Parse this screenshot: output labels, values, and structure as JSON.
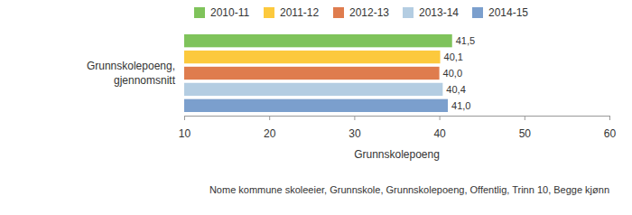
{
  "chart_data": {
    "type": "bar",
    "orientation": "horizontal",
    "categories": [
      "Grunnskolepoeng, gjennomsnitt"
    ],
    "series": [
      {
        "name": "2010-11",
        "color": "#7fc35b",
        "values": [
          41.5
        ],
        "value_labels": [
          "41,5"
        ]
      },
      {
        "name": "2011-12",
        "color": "#fcc93d",
        "values": [
          40.1
        ],
        "value_labels": [
          "40,1"
        ]
      },
      {
        "name": "2012-13",
        "color": "#df7c4e",
        "values": [
          40.0
        ],
        "value_labels": [
          "40,0"
        ]
      },
      {
        "name": "2013-14",
        "color": "#b4cde2",
        "values": [
          40.4
        ],
        "value_labels": [
          "40,4"
        ]
      },
      {
        "name": "2014-15",
        "color": "#7b9fcd",
        "values": [
          41.0
        ],
        "value_labels": [
          "41,0"
        ]
      }
    ],
    "x_label": "Grunnskolepoeng",
    "xlim": [
      10,
      60
    ],
    "xticks": [
      10,
      20,
      30,
      40,
      50,
      60
    ],
    "grid": false,
    "legend": "top",
    "data_labels": true,
    "annotations": [
      "Nome kommune skoleeier, Grunnskole, Grunnskolepoeng, Offentlig, Trinn 10, Begge kjønn"
    ]
  }
}
